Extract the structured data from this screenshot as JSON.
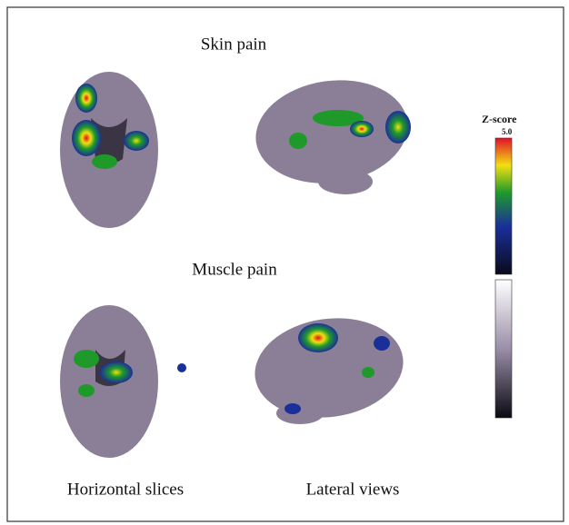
{
  "figure": {
    "rows": [
      {
        "title": "Skin pain"
      },
      {
        "title": "Muscle pain"
      }
    ],
    "columns": [
      "Horizontal slices",
      "Lateral views"
    ],
    "colorbar": {
      "title": "Z-score",
      "max_label": "5.0"
    }
  }
}
